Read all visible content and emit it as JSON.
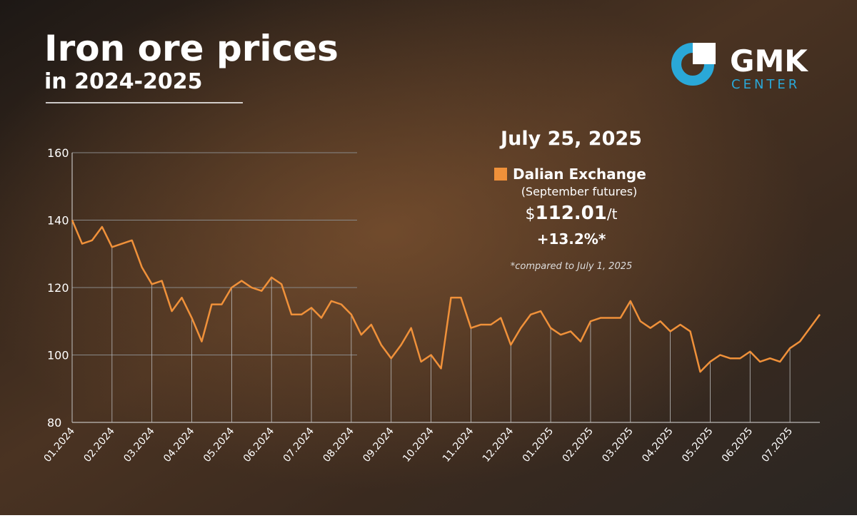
{
  "chart_data": {
    "type": "line",
    "title": "Iron ore prices",
    "subtitle": "in 2024-2025",
    "logo": {
      "main": "GMK",
      "sub": "CENTER"
    },
    "annotation": {
      "date": "July 25, 2025",
      "note": "(September futures)",
      "price_prefix": "$",
      "price": "112.01",
      "price_unit": "/t",
      "change": "+13.2%*",
      "footnote": "*compared to July 1, 2025"
    },
    "categories": [
      "01.2024",
      null,
      null,
      null,
      "02.2024",
      null,
      null,
      null,
      "03.2024",
      null,
      null,
      null,
      "04.2024",
      null,
      null,
      null,
      "05.2024",
      null,
      null,
      null,
      "06.2024",
      null,
      null,
      null,
      "07.2024",
      null,
      null,
      null,
      "08.2024",
      null,
      null,
      null,
      "09.2024",
      null,
      null,
      null,
      "10.2024",
      null,
      null,
      null,
      "11.2024",
      null,
      null,
      null,
      "12.2024",
      null,
      null,
      null,
      "01.2025",
      null,
      null,
      null,
      "02.2025",
      null,
      null,
      null,
      "03.2025",
      null,
      null,
      null,
      "04.2025",
      null,
      null,
      null,
      "05.2025",
      null,
      null,
      null,
      "06.2025",
      null,
      null,
      null,
      "07.2025",
      null,
      null,
      null
    ],
    "series": [
      {
        "name": "Dalian Exchange",
        "color": "#f0913a",
        "values": [
          140,
          133,
          134,
          138,
          132,
          133,
          134,
          126,
          121,
          122,
          113,
          117,
          111,
          104,
          115,
          115,
          120,
          122,
          120,
          119,
          123,
          121,
          112,
          112,
          114,
          111,
          116,
          115,
          112,
          106,
          109,
          103,
          99,
          103,
          108,
          98,
          100,
          96,
          117,
          117,
          108,
          109,
          109,
          111,
          103,
          108,
          112,
          113,
          108,
          106,
          107,
          104,
          110,
          111,
          111,
          111,
          116,
          110,
          108,
          110,
          107,
          109,
          107,
          95,
          98,
          100,
          99,
          99,
          101,
          98,
          99,
          98,
          102,
          104,
          108,
          112.01
        ]
      }
    ],
    "ylim": [
      80,
      160
    ],
    "yticks": [
      80,
      100,
      120,
      140,
      160
    ],
    "grid": true
  }
}
